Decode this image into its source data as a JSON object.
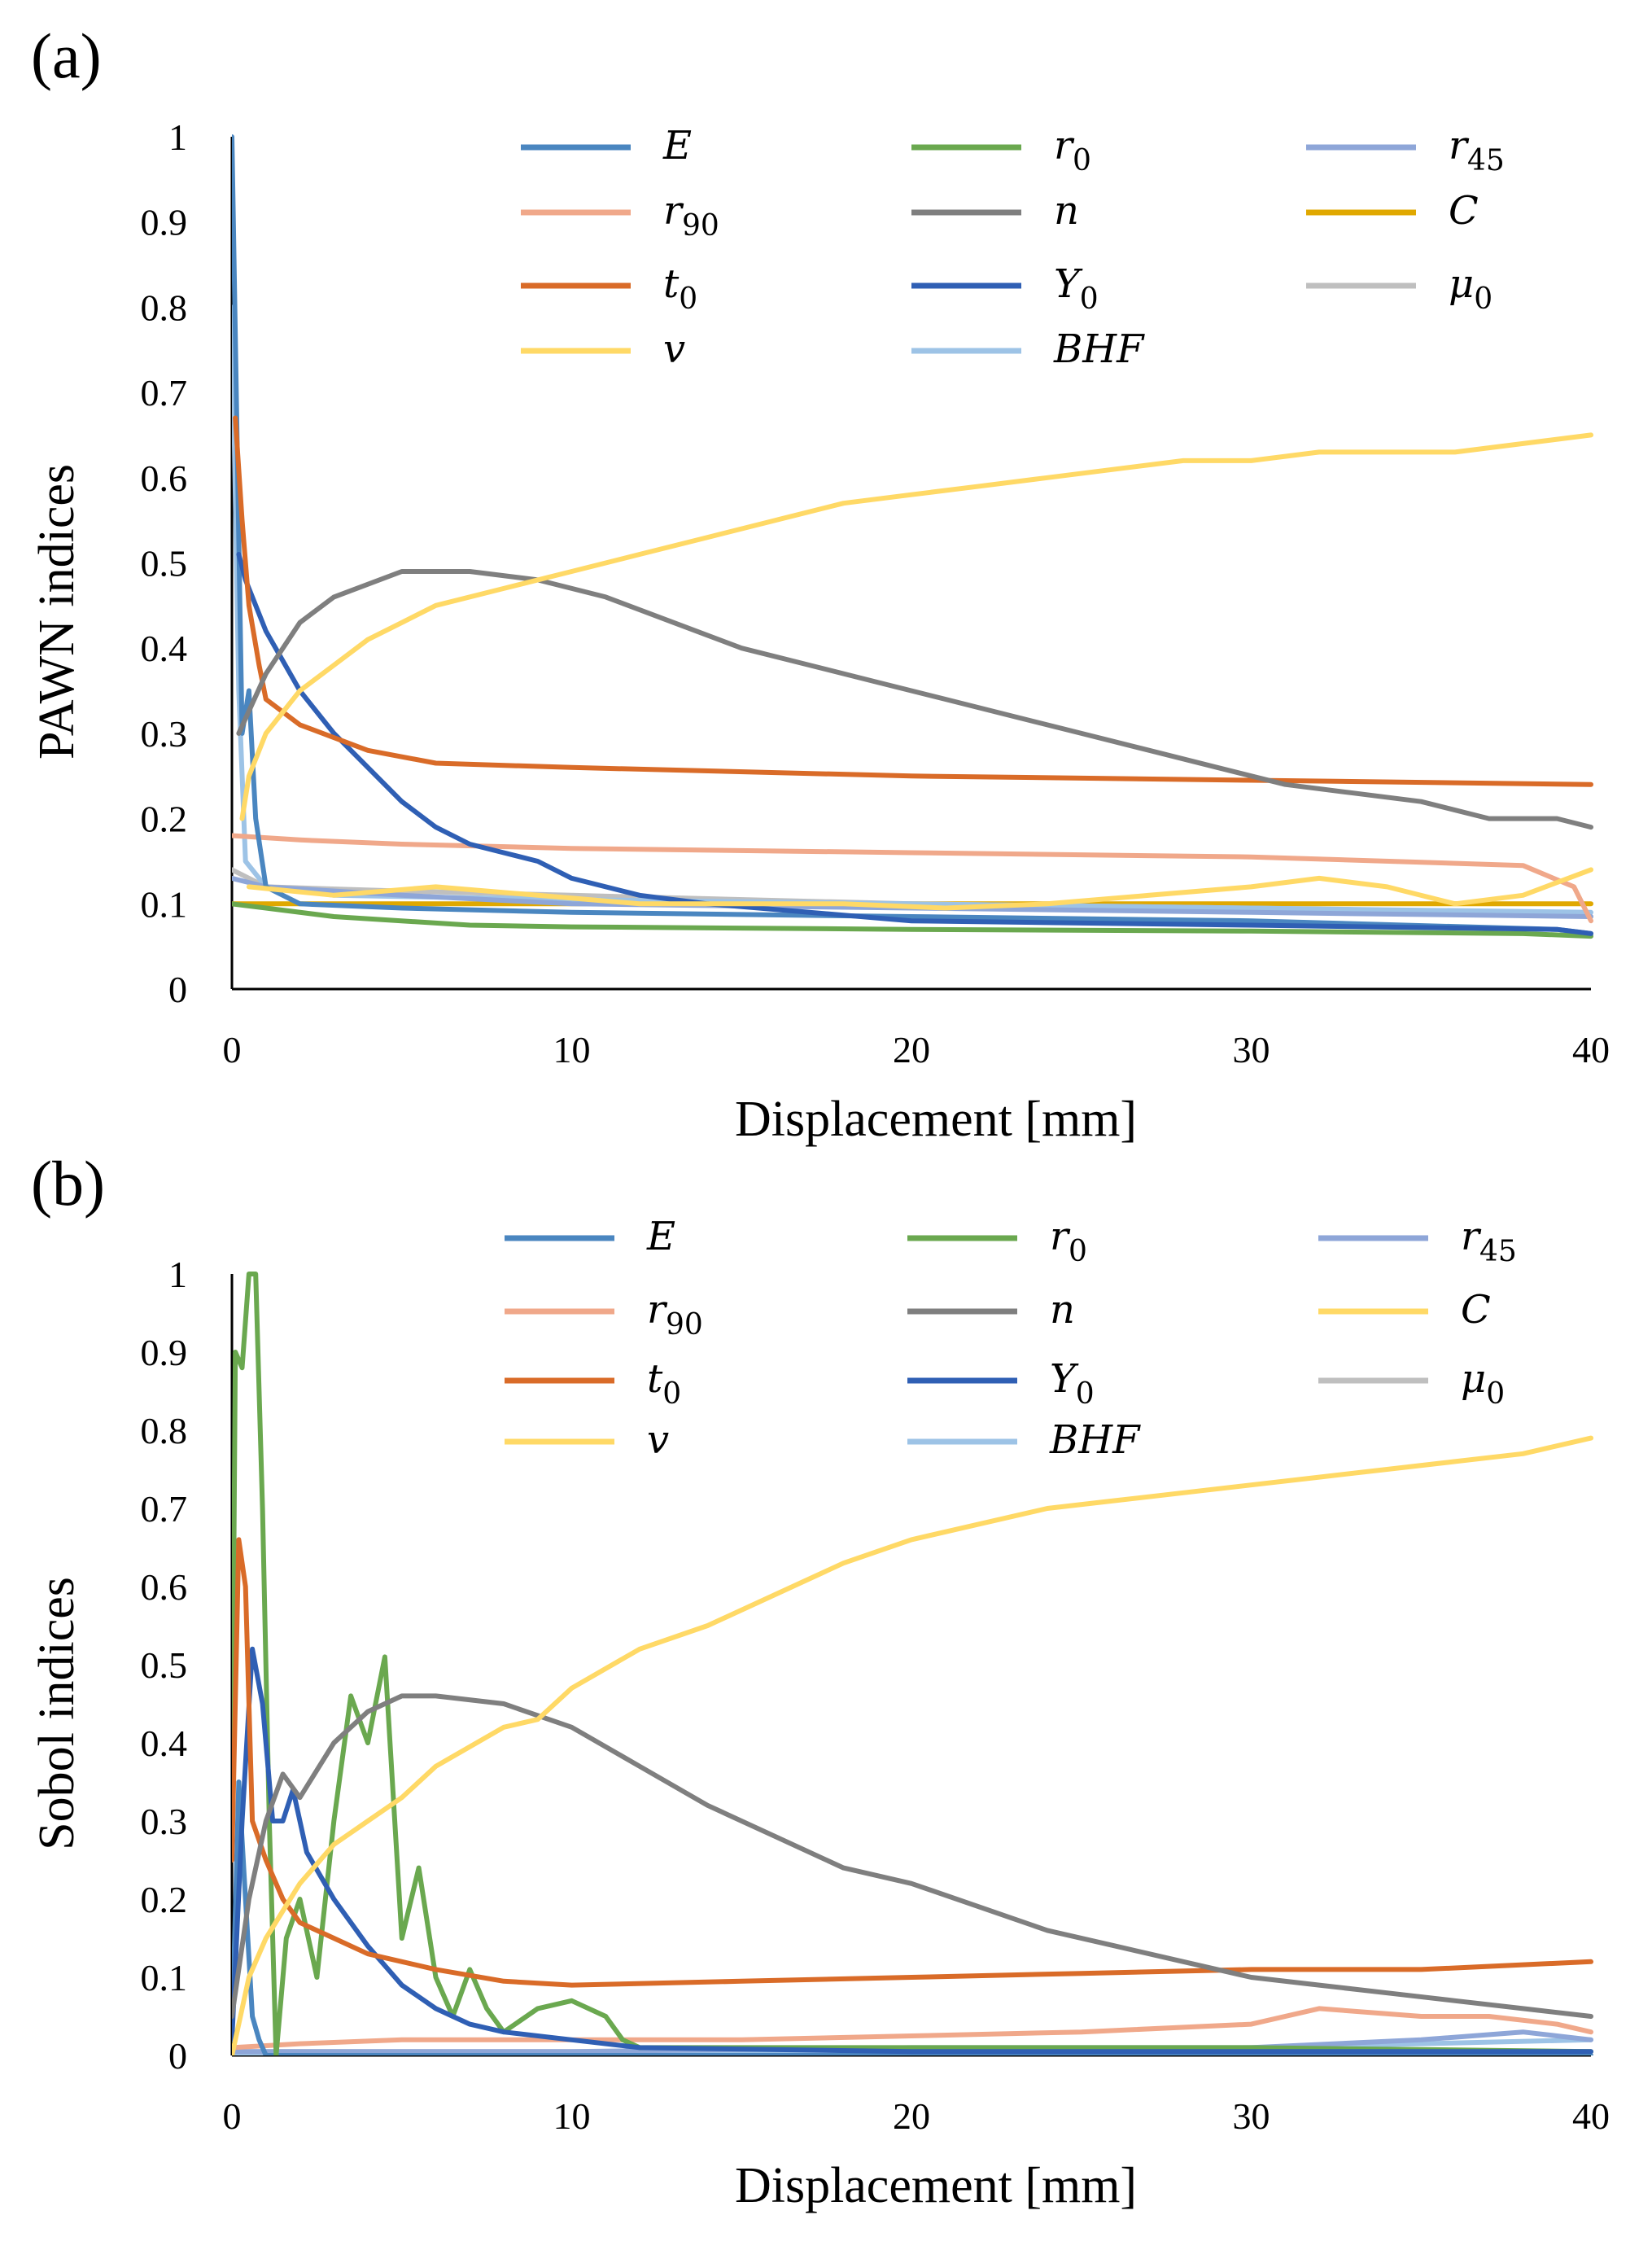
{
  "colors": {
    "E": "#4a86c0",
    "r0": "#6aa84f",
    "r45": "#8ea6d8",
    "r90": "#f0a88a",
    "n": "#7f7f7f",
    "C": "#e0a800",
    "C_b": "#ffd966",
    "t0": "#d96b28",
    "Y0": "#2f5fb4",
    "mu0": "#bfbfbf",
    "v": "#ffd966",
    "BHF": "#9dc3e6",
    "axis": "#000000"
  },
  "chart_data": [
    {
      "type": "line",
      "panel_label": "(a)",
      "xlabel": "Displacement [mm]",
      "ylabel": "PAWN indices",
      "xlim": [
        0,
        40
      ],
      "ylim": [
        0,
        1
      ],
      "x_ticks": [
        "0",
        "10",
        "20",
        "30",
        "40"
      ],
      "y_ticks": [
        "0",
        "0.1",
        "0.2",
        "0.3",
        "0.4",
        "0.5",
        "0.6",
        "0.7",
        "0.8",
        "0.9",
        "1"
      ],
      "grid": false,
      "legend_position": "top-right (inside plot, 3 columns)",
      "legend": [
        {
          "key": "E",
          "label": "E",
          "sub": "",
          "color_key": "E"
        },
        {
          "key": "r0",
          "label": "r",
          "sub": "0",
          "color_key": "r0"
        },
        {
          "key": "r45",
          "label": "r",
          "sub": "45",
          "color_key": "r45"
        },
        {
          "key": "r90",
          "label": "r",
          "sub": "90",
          "color_key": "r90"
        },
        {
          "key": "n",
          "label": "n",
          "sub": "",
          "color_key": "n"
        },
        {
          "key": "C",
          "label": "C",
          "sub": "",
          "color_key": "C"
        },
        {
          "key": "t0",
          "label": "t",
          "sub": "0",
          "color_key": "t0"
        },
        {
          "key": "Y0",
          "label": "Y",
          "sub": "0",
          "color_key": "Y0"
        },
        {
          "key": "mu0",
          "label": "μ",
          "sub": "0",
          "color_key": "mu0"
        },
        {
          "key": "v",
          "label": "v",
          "sub": "",
          "color_key": "v"
        },
        {
          "key": "BHF",
          "label": "BHF",
          "sub": "",
          "color_key": "BHF"
        }
      ],
      "series": [
        {
          "key": "E",
          "x": [
            0,
            0.3,
            0.5,
            0.7,
            1,
            2,
            5,
            10,
            20,
            30,
            39,
            40
          ],
          "y": [
            1.0,
            0.3,
            0.35,
            0.2,
            0.12,
            0.1,
            0.095,
            0.09,
            0.085,
            0.08,
            0.07,
            0.065
          ]
        },
        {
          "key": "r0",
          "x": [
            0,
            1,
            3,
            7,
            10,
            20,
            30,
            38,
            40
          ],
          "y": [
            0.1,
            0.095,
            0.085,
            0.075,
            0.073,
            0.07,
            0.068,
            0.065,
            0.062
          ]
        },
        {
          "key": "r45",
          "x": [
            0,
            1,
            5,
            10,
            20,
            30,
            40
          ],
          "y": [
            0.13,
            0.12,
            0.11,
            0.1,
            0.095,
            0.09,
            0.085
          ]
        },
        {
          "key": "r90",
          "x": [
            0,
            2,
            5,
            10,
            20,
            30,
            38,
            39.5,
            40
          ],
          "y": [
            0.18,
            0.175,
            0.17,
            0.165,
            0.16,
            0.155,
            0.145,
            0.12,
            0.08
          ]
        },
        {
          "key": "n",
          "x": [
            0.2,
            1,
            2,
            3,
            5,
            7,
            9,
            11,
            13,
            15,
            17,
            19,
            21,
            23,
            25,
            27,
            29,
            31,
            33,
            35,
            37,
            39,
            40
          ],
          "y": [
            0.3,
            0.37,
            0.43,
            0.46,
            0.49,
            0.49,
            0.48,
            0.46,
            0.43,
            0.4,
            0.38,
            0.36,
            0.34,
            0.32,
            0.3,
            0.28,
            0.26,
            0.24,
            0.23,
            0.22,
            0.2,
            0.2,
            0.19
          ]
        },
        {
          "key": "C",
          "x": [
            0,
            10,
            20,
            30,
            40
          ],
          "y": [
            0.1,
            0.1,
            0.1,
            0.1,
            0.1
          ]
        },
        {
          "key": "t0",
          "x": [
            0.1,
            0.3,
            0.5,
            0.8,
            1,
            2,
            4,
            6,
            10,
            20,
            30,
            40
          ],
          "y": [
            0.67,
            0.55,
            0.45,
            0.38,
            0.34,
            0.31,
            0.28,
            0.265,
            0.26,
            0.25,
            0.245,
            0.24
          ]
        },
        {
          "key": "Y0",
          "x": [
            0.2,
            0.4,
            1,
            2,
            3,
            4,
            5,
            6,
            7,
            8,
            9,
            10,
            12,
            14,
            20,
            30,
            39,
            40
          ],
          "y": [
            0.51,
            0.48,
            0.42,
            0.35,
            0.3,
            0.26,
            0.22,
            0.19,
            0.17,
            0.16,
            0.15,
            0.13,
            0.11,
            0.1,
            0.08,
            0.075,
            0.07,
            0.065
          ]
        },
        {
          "key": "mu0",
          "x": [
            0,
            1,
            5,
            10,
            20,
            30,
            38,
            40
          ],
          "y": [
            0.14,
            0.12,
            0.115,
            0.11,
            0.1,
            0.095,
            0.09,
            0.085
          ]
        },
        {
          "key": "v",
          "x": [
            0.3,
            0.5,
            1,
            2,
            3,
            4,
            5,
            6,
            8,
            10,
            12,
            14,
            16,
            18,
            20,
            22,
            24,
            26,
            28,
            30,
            32,
            34,
            36,
            38,
            40
          ],
          "y": [
            0.2,
            0.25,
            0.3,
            0.35,
            0.38,
            0.41,
            0.43,
            0.45,
            0.47,
            0.49,
            0.51,
            0.53,
            0.55,
            0.57,
            0.58,
            0.59,
            0.6,
            0.61,
            0.62,
            0.62,
            0.63,
            0.63,
            0.63,
            0.64,
            0.65
          ]
        },
        {
          "key": "BHF",
          "x": [
            0,
            0.2,
            0.4,
            1,
            3,
            10,
            20,
            30,
            40
          ],
          "y": [
            0.8,
            0.35,
            0.15,
            0.12,
            0.11,
            0.105,
            0.1,
            0.095,
            0.09
          ]
        }
      ],
      "noisy_v_small": {
        "key": "v",
        "x": [
          0.5,
          3,
          6,
          9,
          12,
          15,
          18,
          21,
          24,
          27,
          30,
          32,
          34,
          36,
          38,
          40
        ],
        "y": [
          0.12,
          0.11,
          0.12,
          0.11,
          0.1,
          0.1,
          0.1,
          0.095,
          0.1,
          0.11,
          0.12,
          0.13,
          0.12,
          0.1,
          0.11,
          0.14
        ]
      }
    },
    {
      "type": "line",
      "panel_label": "(b)",
      "xlabel": "Displacement [mm]",
      "ylabel": "Sobol indices",
      "xlim": [
        0,
        40
      ],
      "ylim": [
        0,
        1
      ],
      "x_ticks": [
        "0",
        "10",
        "20",
        "30",
        "40"
      ],
      "y_ticks": [
        "0",
        "0.1",
        "0.2",
        "0.3",
        "0.4",
        "0.5",
        "0.6",
        "0.7",
        "0.8",
        "0.9",
        "1"
      ],
      "grid": false,
      "legend_position": "top-right (inside plot, 3 columns)",
      "legend": [
        {
          "key": "E",
          "label": "E",
          "sub": "",
          "color_key": "E"
        },
        {
          "key": "r0",
          "label": "r",
          "sub": "0",
          "color_key": "r0"
        },
        {
          "key": "r45",
          "label": "r",
          "sub": "45",
          "color_key": "r45"
        },
        {
          "key": "r90",
          "label": "r",
          "sub": "90",
          "color_key": "r90"
        },
        {
          "key": "n",
          "label": "n",
          "sub": "",
          "color_key": "n"
        },
        {
          "key": "C",
          "label": "C",
          "sub": "",
          "color_key": "C_b"
        },
        {
          "key": "t0",
          "label": "t",
          "sub": "0",
          "color_key": "t0"
        },
        {
          "key": "Y0",
          "label": "Y",
          "sub": "0",
          "color_key": "Y0"
        },
        {
          "key": "mu0",
          "label": "μ",
          "sub": "0",
          "color_key": "mu0"
        },
        {
          "key": "v",
          "label": "v",
          "sub": "",
          "color_key": "v"
        },
        {
          "key": "BHF",
          "label": "BHF",
          "sub": "",
          "color_key": "BHF"
        }
      ],
      "series": [
        {
          "key": "E",
          "x": [
            0,
            0.2,
            0.4,
            0.6,
            0.8,
            1,
            2,
            10,
            20,
            30,
            40
          ],
          "y": [
            0.02,
            0.35,
            0.2,
            0.05,
            0.02,
            0.0,
            0.0,
            0.0,
            0.0,
            0.0,
            0.0
          ]
        },
        {
          "key": "r0",
          "x": [
            0,
            0.1,
            0.3,
            0.5,
            0.7,
            0.9,
            1.1,
            1.3,
            1.6,
            2,
            2.5,
            3,
            3.5,
            4,
            4.5,
            5,
            5.5,
            6,
            6.5,
            7,
            7.5,
            8,
            9,
            10,
            11,
            11.5,
            12,
            20,
            30,
            40
          ],
          "y": [
            0.3,
            0.9,
            0.88,
            1.0,
            1.0,
            0.7,
            0.3,
            0.0,
            0.15,
            0.2,
            0.1,
            0.3,
            0.46,
            0.4,
            0.51,
            0.15,
            0.24,
            0.1,
            0.05,
            0.11,
            0.06,
            0.03,
            0.06,
            0.07,
            0.05,
            0.02,
            0.01,
            0.01,
            0.01,
            0.005
          ]
        },
        {
          "key": "r45",
          "x": [
            0,
            5,
            10,
            20,
            30,
            35,
            38,
            40
          ],
          "y": [
            0.005,
            0.005,
            0.005,
            0.01,
            0.01,
            0.02,
            0.03,
            0.02
          ]
        },
        {
          "key": "r90",
          "x": [
            0,
            2,
            5,
            10,
            15,
            20,
            25,
            30,
            32,
            35,
            37,
            39,
            40
          ],
          "y": [
            0.01,
            0.015,
            0.02,
            0.02,
            0.02,
            0.025,
            0.03,
            0.04,
            0.06,
            0.05,
            0.05,
            0.04,
            0.03
          ]
        },
        {
          "key": "n",
          "x": [
            0,
            0.5,
            1,
            1.5,
            2,
            3,
            4,
            5,
            6,
            8,
            10,
            12,
            14,
            16,
            18,
            20,
            22,
            24,
            26,
            28,
            30,
            32,
            34,
            36,
            38,
            40
          ],
          "y": [
            0.05,
            0.2,
            0.3,
            0.36,
            0.33,
            0.4,
            0.44,
            0.46,
            0.46,
            0.45,
            0.42,
            0.37,
            0.32,
            0.28,
            0.24,
            0.22,
            0.19,
            0.16,
            0.14,
            0.12,
            0.1,
            0.09,
            0.08,
            0.07,
            0.06,
            0.05
          ]
        },
        {
          "key": "t0",
          "x": [
            0,
            0.2,
            0.4,
            0.6,
            1,
            1.5,
            2,
            3,
            4,
            5,
            6,
            8,
            10,
            15,
            20,
            25,
            30,
            35,
            40
          ],
          "y": [
            0.25,
            0.66,
            0.6,
            0.3,
            0.25,
            0.2,
            0.17,
            0.15,
            0.13,
            0.12,
            0.11,
            0.095,
            0.09,
            0.095,
            0.1,
            0.105,
            0.11,
            0.11,
            0.12
          ]
        },
        {
          "key": "Y0",
          "x": [
            0,
            0.3,
            0.6,
            0.9,
            1.2,
            1.5,
            1.8,
            2.2,
            3,
            4,
            5,
            6,
            7,
            8,
            10,
            12,
            20,
            30,
            40
          ],
          "y": [
            0.02,
            0.3,
            0.52,
            0.45,
            0.3,
            0.3,
            0.34,
            0.26,
            0.2,
            0.14,
            0.09,
            0.06,
            0.04,
            0.03,
            0.02,
            0.01,
            0.005,
            0.005,
            0.005
          ]
        },
        {
          "key": "mu0",
          "x": [
            0,
            10,
            20,
            30,
            40
          ],
          "y": [
            0.005,
            0.005,
            0.005,
            0.005,
            0.005
          ]
        },
        {
          "key": "v",
          "x": [
            0,
            0.5,
            1,
            2,
            3,
            4,
            5,
            6,
            8,
            9,
            10,
            12,
            14,
            16,
            18,
            20,
            22,
            24,
            26,
            28,
            30,
            32,
            34,
            36,
            38,
            40
          ],
          "y": [
            0.0,
            0.1,
            0.15,
            0.22,
            0.27,
            0.3,
            0.33,
            0.37,
            0.42,
            0.43,
            0.47,
            0.52,
            0.55,
            0.59,
            0.63,
            0.66,
            0.68,
            0.7,
            0.71,
            0.72,
            0.73,
            0.74,
            0.75,
            0.76,
            0.77,
            0.79
          ]
        },
        {
          "key": "BHF",
          "x": [
            0,
            5,
            10,
            20,
            30,
            35,
            40
          ],
          "y": [
            0.0,
            0.0,
            0.002,
            0.005,
            0.01,
            0.015,
            0.02
          ]
        }
      ]
    }
  ]
}
